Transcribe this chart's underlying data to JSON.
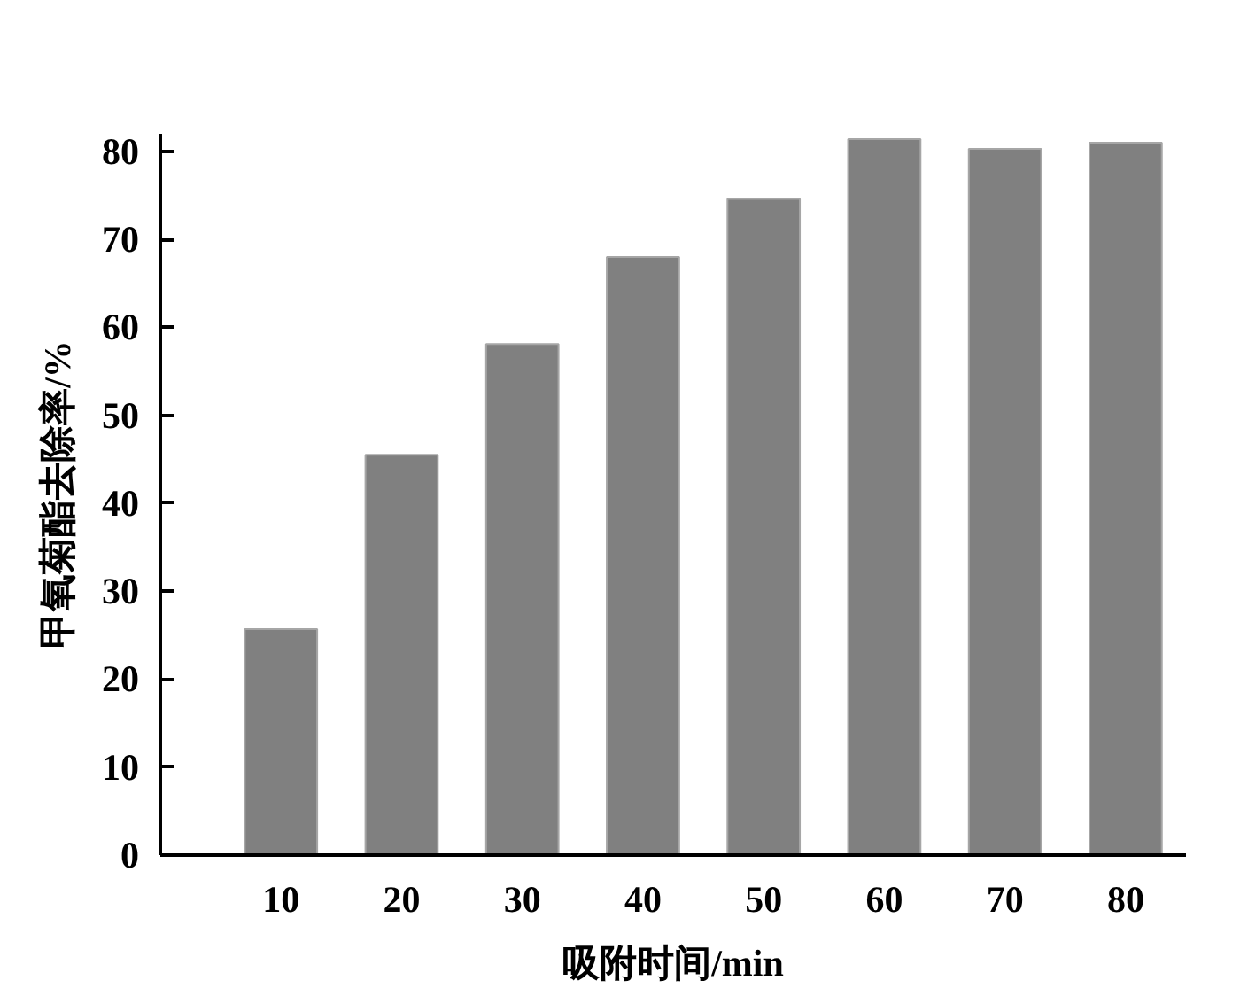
{
  "chart_data": {
    "type": "bar",
    "xlabel": "吸附时间/min",
    "ylabel": "甲氧菊酯去除率/%",
    "x": [
      10,
      20,
      30,
      40,
      50,
      60,
      70,
      80
    ],
    "values": [
      25.7,
      45.5,
      58.1,
      68.0,
      74.6,
      81.4,
      80.3,
      81.0
    ],
    "color": "#808080",
    "xlim": [
      0,
      85
    ],
    "xticks": [
      10,
      20,
      30,
      40,
      50,
      60,
      70,
      80
    ],
    "ylim": [
      0,
      82
    ],
    "yticks": [
      0,
      10,
      20,
      30,
      40,
      50,
      60,
      70,
      80
    ]
  }
}
